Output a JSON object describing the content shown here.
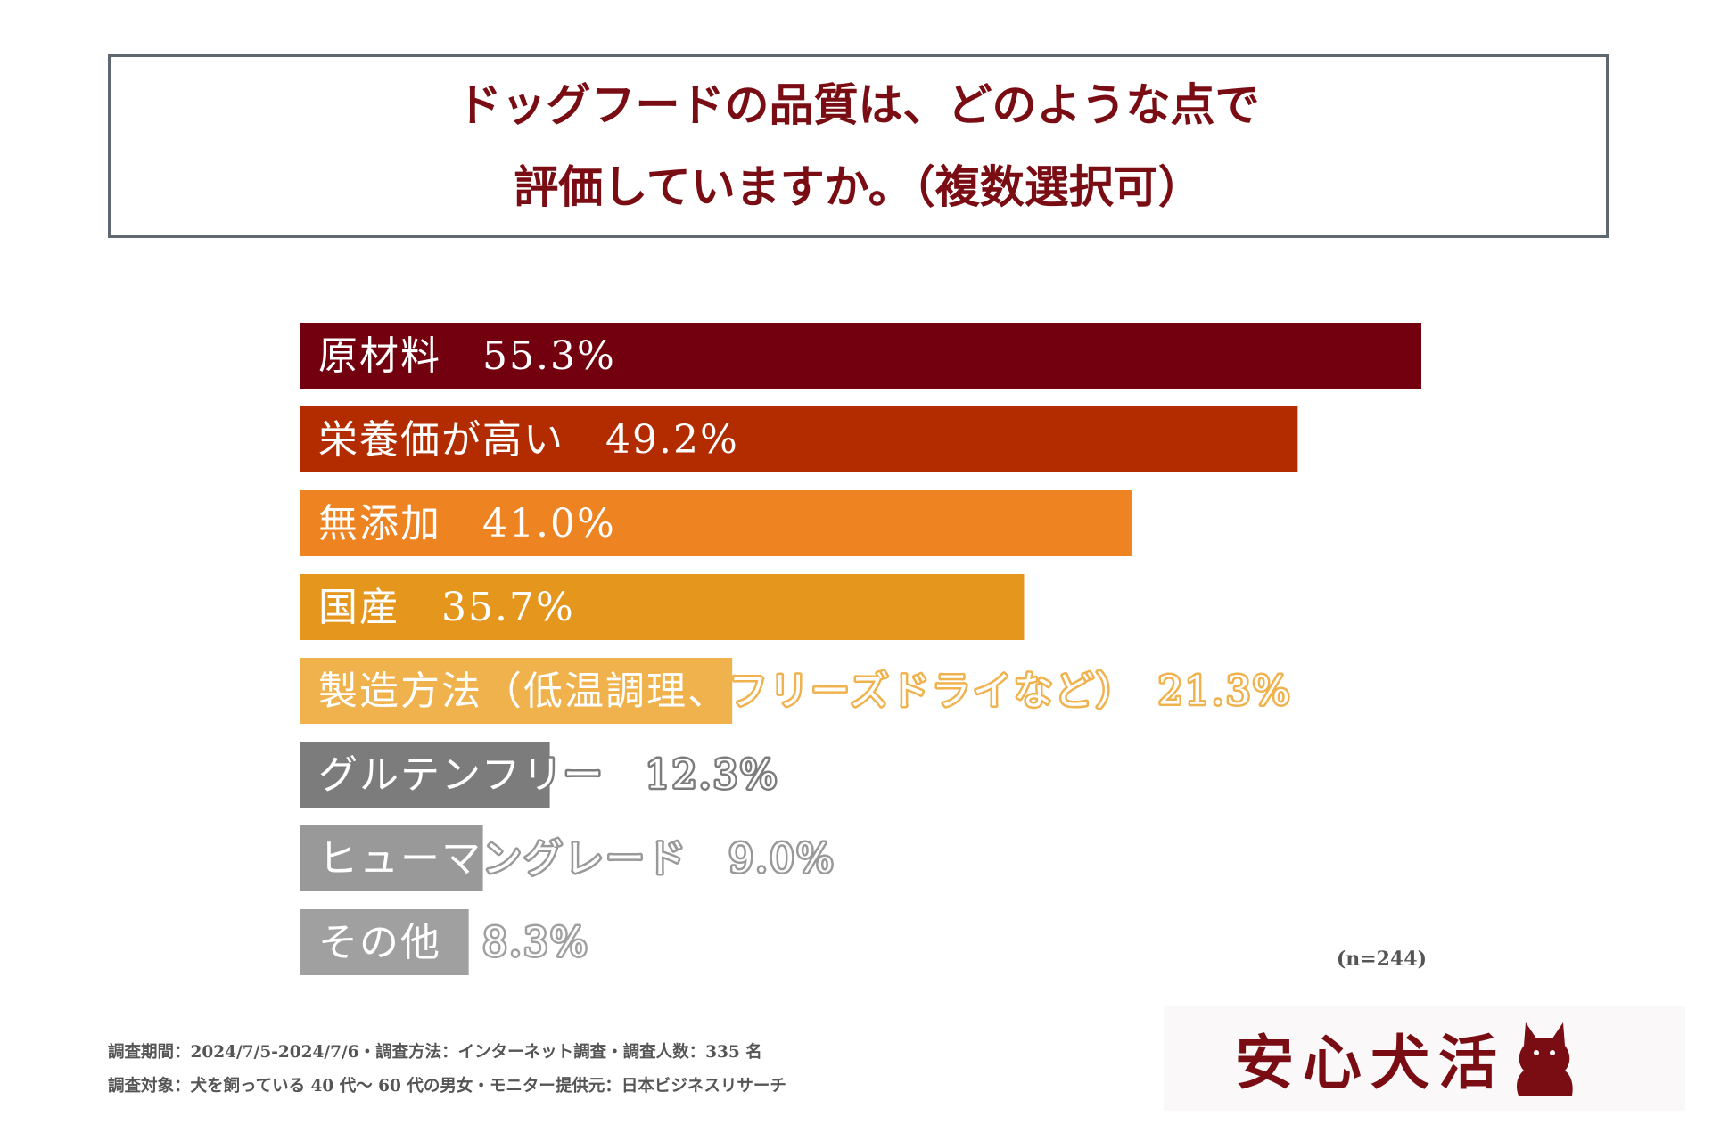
{
  "title": {
    "line1": "ドッグフードの品質は、どのような点で",
    "line2": "評価していますか。（複数選択可）"
  },
  "chart_data": {
    "type": "bar",
    "orientation": "horizontal",
    "categories": [
      "原材料",
      "栄養価が高い",
      "無添加",
      "国産",
      "製造方法（低温調理、フリーズドライなど）",
      "グルテンフリー",
      "ヒューマングレード",
      "その他"
    ],
    "values": [
      55.3,
      49.2,
      41.0,
      35.7,
      21.3,
      12.3,
      9.0,
      8.3
    ],
    "value_labels": [
      "55.3%",
      "49.2%",
      "41.0%",
      "35.7%",
      "21.3%",
      "12.3%",
      "9.0%",
      "8.3%"
    ],
    "colors": [
      "#72000f",
      "#b22c00",
      "#ee8322",
      "#e5961c",
      "#efb24c",
      "#7c7c7c",
      "#999999",
      "#a0a0a0"
    ],
    "xlim": [
      0,
      55.3
    ]
  },
  "sample_size": "(n=244)",
  "footnotes": {
    "line1": "調査期間：2024/7/5-2024/7/6・調査方法：インターネット調査・調査人数：335 名",
    "line2": "調査対象：犬を飼っている 40 代～ 60 代の男女・モニター提供元：日本ビジネスリサーチ"
  },
  "brand": {
    "name": "安心犬活",
    "icon": "dog-silhouette-icon"
  }
}
